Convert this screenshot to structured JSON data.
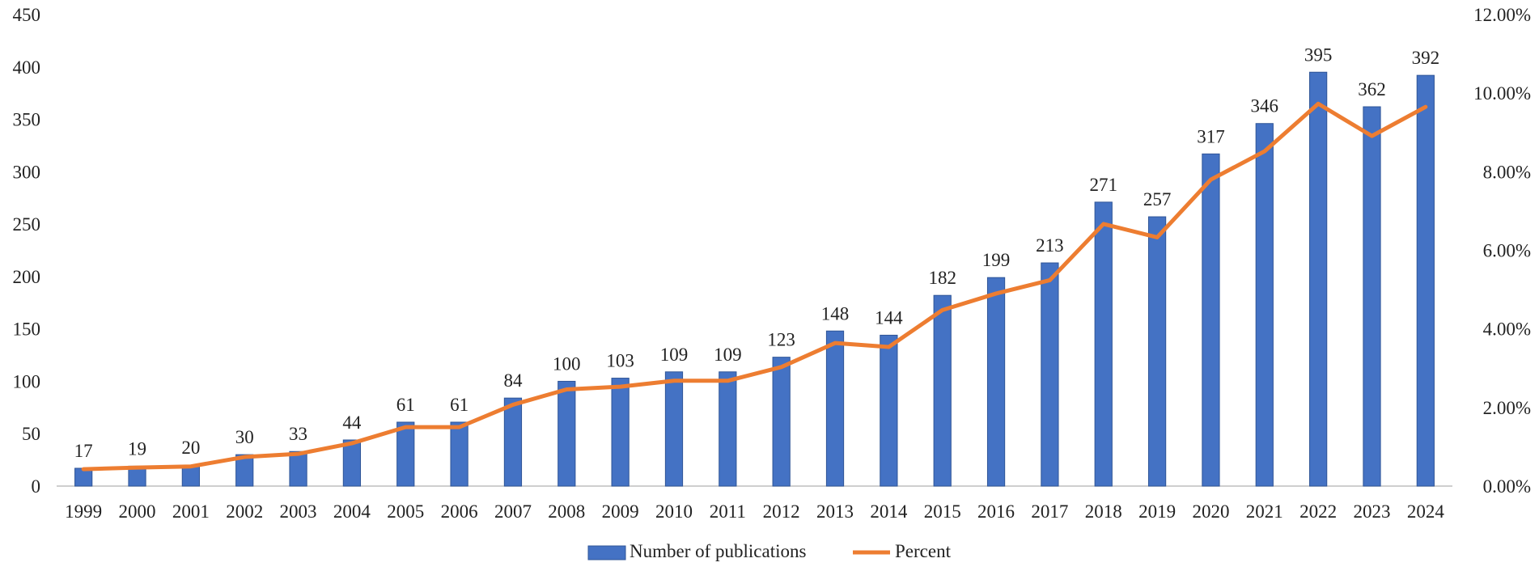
{
  "chart_data": {
    "type": "bar",
    "categories": [
      "1999",
      "2000",
      "2001",
      "2002",
      "2003",
      "2004",
      "2005",
      "2006",
      "2007",
      "2008",
      "2009",
      "2010",
      "2011",
      "2012",
      "2013",
      "2014",
      "2015",
      "2016",
      "2017",
      "2018",
      "2019",
      "2020",
      "2021",
      "2022",
      "2023",
      "2024"
    ],
    "series": [
      {
        "name": "Number of publications",
        "type": "bar",
        "axis": "left",
        "color": "#4472C4",
        "values": [
          17,
          19,
          20,
          30,
          33,
          44,
          61,
          61,
          84,
          100,
          103,
          109,
          109,
          123,
          148,
          144,
          182,
          199,
          213,
          271,
          257,
          317,
          346,
          395,
          362,
          392
        ]
      },
      {
        "name": "Percent",
        "type": "line",
        "axis": "right",
        "color": "#ED7D31",
        "values": [
          0.43,
          0.47,
          0.5,
          0.74,
          0.82,
          1.09,
          1.5,
          1.5,
          2.07,
          2.46,
          2.53,
          2.68,
          2.68,
          3.03,
          3.64,
          3.54,
          4.48,
          4.9,
          5.24,
          6.67,
          6.33,
          7.8,
          8.52,
          9.73,
          8.91,
          9.65
        ]
      }
    ],
    "left_axis": {
      "min": 0,
      "max": 450,
      "step": 50,
      "ticks": [
        "0",
        "50",
        "100",
        "150",
        "200",
        "250",
        "300",
        "350",
        "400",
        "450"
      ]
    },
    "right_axis": {
      "min": 0,
      "max": 12,
      "step": 2,
      "ticks": [
        "0.00%",
        "2.00%",
        "4.00%",
        "6.00%",
        "8.00%",
        "10.00%",
        "12.00%"
      ]
    },
    "data_labels": true,
    "grid": false,
    "legend_position": "bottom-center",
    "title": "",
    "xlabel": "",
    "ylabel": ""
  }
}
